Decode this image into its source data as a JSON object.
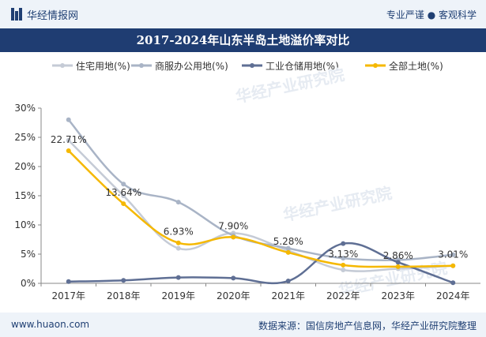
{
  "header": {
    "site_name": "华经情报网",
    "slogan": "专业严谨 ● 客观科学"
  },
  "footer": {
    "url": "www.huaon.com",
    "source": "数据来源：国信房地产信息网，华经产业研究院整理"
  },
  "watermark": "华经产业研究院",
  "colors": {
    "residential": "#c5cbd6",
    "commercial": "#a9b4c6",
    "industrial": "#5f6f94",
    "all_land": "#f5b800",
    "title_bg": "#1f3d72"
  },
  "chart_data": {
    "type": "line",
    "title": "2017-2024年山东半岛土地溢价率对比",
    "categories": [
      "2017年",
      "2018年",
      "2019年",
      "2020年",
      "2021年",
      "2022年",
      "2023年",
      "2024年"
    ],
    "y_ticks": [
      "0%",
      "5%",
      "10%",
      "15%",
      "20%",
      "25%",
      "30%"
    ],
    "ylim": [
      0,
      30
    ],
    "grid": false,
    "legend_position": "top",
    "series": [
      {
        "name": "住宅用地(%)",
        "key": "residential",
        "values": [
          24.5,
          15.0,
          6.0,
          8.6,
          5.6,
          2.3,
          2.5,
          3.0
        ]
      },
      {
        "name": "商服办公用地(%)",
        "key": "commercial",
        "values": [
          28.0,
          17.0,
          13.9,
          8.2,
          6.0,
          4.3,
          4.0,
          4.9
        ]
      },
      {
        "name": "工业仓储用地(%)",
        "key": "industrial",
        "values": [
          0.3,
          0.5,
          1.0,
          0.9,
          0.4,
          6.8,
          3.6,
          0.1
        ]
      },
      {
        "name": "全部土地(%)",
        "key": "all_land",
        "values": [
          22.71,
          13.64,
          6.93,
          7.9,
          5.28,
          3.13,
          2.86,
          3.01
        ]
      }
    ],
    "data_labels": [
      "22.71%",
      "13.64%",
      "6.93%",
      "7.90%",
      "5.28%",
      "3.13%",
      "2.86%",
      "3.01%"
    ]
  }
}
